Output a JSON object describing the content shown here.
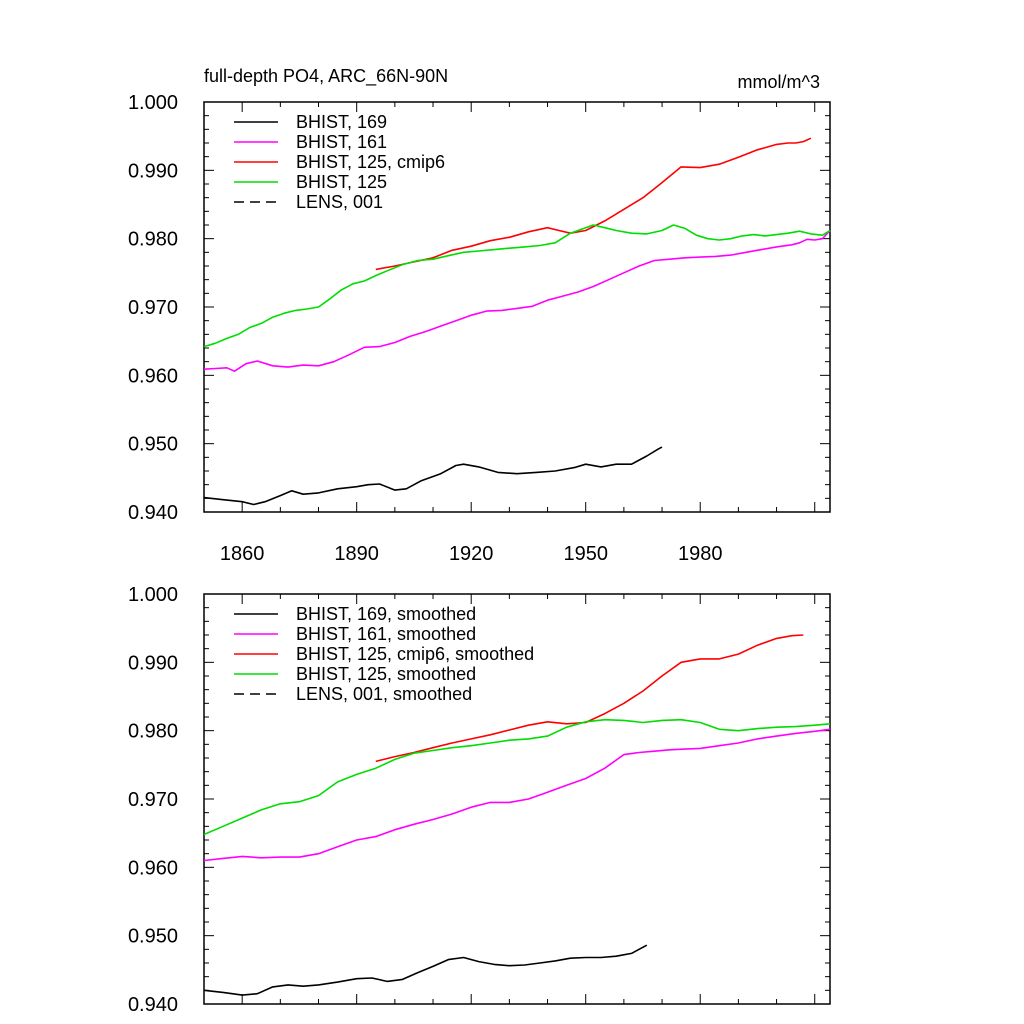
{
  "figure": {
    "title": "full-depth PO4, ARC_66N-90N",
    "units": "mmol/m^3"
  },
  "chart_data": [
    {
      "type": "line",
      "panel": "top",
      "title": "full-depth PO4, ARC_66N-90N",
      "units_label": "mmol/m^3",
      "xlim": [
        1850,
        2014
      ],
      "ylim": [
        0.94,
        1.0
      ],
      "xticks": [
        1860,
        1890,
        1920,
        1950,
        1980
      ],
      "xtick_labels": [
        "1860",
        "1890",
        "1920",
        "1950",
        "1980"
      ],
      "yticks": [
        0.94,
        0.95,
        0.96,
        0.97,
        0.98,
        0.99,
        1.0
      ],
      "ytick_labels": [
        "0.940",
        "0.950",
        "0.960",
        "0.970",
        "0.980",
        "0.990",
        "1.000"
      ],
      "legend_position": "top-left",
      "series": [
        {
          "name": "BHIST, 169",
          "color": "#000000",
          "dash": "solid",
          "x": [
            1850,
            1855,
            1860,
            1863,
            1866,
            1870,
            1873,
            1876,
            1880,
            1885,
            1890,
            1893,
            1896,
            1900,
            1903,
            1907,
            1912,
            1916,
            1918,
            1922,
            1927,
            1932,
            1937,
            1942,
            1947,
            1950,
            1954,
            1958,
            1962,
            1966,
            1969,
            1970
          ],
          "y": [
            0.9421,
            0.9418,
            0.9415,
            0.9411,
            0.9415,
            0.9424,
            0.9431,
            0.9426,
            0.9428,
            0.9434,
            0.9437,
            0.944,
            0.9441,
            0.9432,
            0.9434,
            0.9446,
            0.9456,
            0.9468,
            0.947,
            0.9466,
            0.9458,
            0.9456,
            0.9458,
            0.946,
            0.9465,
            0.947,
            0.9466,
            0.947,
            0.947,
            0.9482,
            0.9492,
            0.9495
          ]
        },
        {
          "name": "BHIST, 161",
          "color": "#ff00ff",
          "dash": "solid",
          "x": [
            1850,
            1853,
            1856,
            1858,
            1861,
            1864,
            1868,
            1872,
            1876,
            1880,
            1884,
            1888,
            1892,
            1896,
            1900,
            1904,
            1908,
            1912,
            1916,
            1920,
            1924,
            1928,
            1932,
            1936,
            1940,
            1944,
            1948,
            1952,
            1956,
            1960,
            1964,
            1968,
            1972,
            1976,
            1980,
            1984,
            1988,
            1992,
            1996,
            2000,
            2004,
            2006,
            2008,
            2010,
            2012,
            2014
          ],
          "y": [
            0.9609,
            0.961,
            0.9611,
            0.9606,
            0.9617,
            0.9621,
            0.9614,
            0.9612,
            0.9615,
            0.9614,
            0.962,
            0.963,
            0.9641,
            0.9642,
            0.9648,
            0.9657,
            0.9664,
            0.9672,
            0.968,
            0.9688,
            0.9694,
            0.9695,
            0.9698,
            0.9701,
            0.971,
            0.9716,
            0.9722,
            0.973,
            0.974,
            0.975,
            0.976,
            0.9768,
            0.977,
            0.9772,
            0.9773,
            0.9774,
            0.9776,
            0.978,
            0.9784,
            0.9788,
            0.9791,
            0.9794,
            0.9799,
            0.9798,
            0.98,
            0.9812
          ]
        },
        {
          "name": "BHIST, 125, cmip6",
          "color": "#ff0000",
          "dash": "solid",
          "x": [
            1895,
            1900,
            1905,
            1910,
            1915,
            1920,
            1925,
            1930,
            1935,
            1940,
            1943,
            1946,
            1950,
            1955,
            1960,
            1965,
            1970,
            1975,
            1980,
            1985,
            1990,
            1995,
            2000,
            2003,
            2005,
            2007,
            2009
          ],
          "y": [
            0.9755,
            0.976,
            0.9766,
            0.9772,
            0.9783,
            0.9789,
            0.9797,
            0.9802,
            0.981,
            0.9816,
            0.9812,
            0.9808,
            0.9812,
            0.9826,
            0.9843,
            0.986,
            0.9882,
            0.9905,
            0.9904,
            0.9909,
            0.9919,
            0.993,
            0.9938,
            0.994,
            0.994,
            0.9942,
            0.9947
          ]
        },
        {
          "name": "BHIST, 125",
          "color": "#00dd00",
          "dash": "solid",
          "x": [
            1850,
            1853,
            1856,
            1859,
            1862,
            1865,
            1868,
            1871,
            1874,
            1877,
            1880,
            1883,
            1886,
            1889,
            1892,
            1895,
            1898,
            1902,
            1906,
            1910,
            1914,
            1918,
            1922,
            1926,
            1930,
            1934,
            1938,
            1942,
            1946,
            1950,
            1952,
            1955,
            1958,
            1962,
            1966,
            1970,
            1973,
            1976,
            1979,
            1982,
            1985,
            1988,
            1991,
            1994,
            1997,
            2000,
            2003,
            2006,
            2009,
            2012,
            2014
          ],
          "y": [
            0.9642,
            0.9647,
            0.9654,
            0.966,
            0.967,
            0.9676,
            0.9685,
            0.9691,
            0.9695,
            0.9697,
            0.97,
            0.9712,
            0.9725,
            0.9734,
            0.9738,
            0.9746,
            0.9753,
            0.9762,
            0.9768,
            0.977,
            0.9775,
            0.978,
            0.9782,
            0.9784,
            0.9786,
            0.9788,
            0.979,
            0.9794,
            0.9808,
            0.9816,
            0.982,
            0.9816,
            0.9812,
            0.9808,
            0.9807,
            0.9812,
            0.982,
            0.9815,
            0.9805,
            0.98,
            0.9798,
            0.98,
            0.9804,
            0.9806,
            0.9804,
            0.9806,
            0.9808,
            0.9811,
            0.9807,
            0.9805,
            0.9812
          ]
        }
      ]
    },
    {
      "type": "line",
      "panel": "bottom",
      "xlim": [
        1850,
        2014
      ],
      "ylim": [
        0.94,
        1.0
      ],
      "xticks": [
        1860,
        1890,
        1920,
        1950,
        1980
      ],
      "yticks": [
        0.94,
        0.95,
        0.96,
        0.97,
        0.98,
        0.99,
        1.0
      ],
      "ytick_labels": [
        "0.940",
        "0.950",
        "0.960",
        "0.970",
        "0.980",
        "0.990",
        "1.000"
      ],
      "legend_position": "top-left",
      "series": [
        {
          "name": "BHIST, 169, smoothed",
          "color": "#000000",
          "dash": "solid",
          "x": [
            1850,
            1855,
            1860,
            1864,
            1868,
            1872,
            1876,
            1880,
            1885,
            1890,
            1894,
            1898,
            1902,
            1906,
            1910,
            1914,
            1918,
            1922,
            1926,
            1930,
            1934,
            1938,
            1942,
            1946,
            1950,
            1954,
            1958,
            1962,
            1964,
            1966
          ],
          "y": [
            0.942,
            0.9417,
            0.9413,
            0.9415,
            0.9425,
            0.9428,
            0.9426,
            0.9428,
            0.9432,
            0.9437,
            0.9438,
            0.9433,
            0.9436,
            0.9446,
            0.9455,
            0.9465,
            0.9468,
            0.9462,
            0.9458,
            0.9456,
            0.9457,
            0.946,
            0.9463,
            0.9467,
            0.9468,
            0.9468,
            0.947,
            0.9474,
            0.948,
            0.9486
          ]
        },
        {
          "name": "BHIST, 161, smoothed",
          "color": "#ff00ff",
          "dash": "solid",
          "x": [
            1850,
            1855,
            1860,
            1865,
            1870,
            1875,
            1880,
            1885,
            1890,
            1895,
            1900,
            1905,
            1910,
            1915,
            1920,
            1925,
            1930,
            1935,
            1940,
            1945,
            1950,
            1955,
            1960,
            1964,
            1968,
            1972,
            1976,
            1980,
            1985,
            1990,
            1995,
            2000,
            2005,
            2010,
            2014
          ],
          "y": [
            0.961,
            0.9613,
            0.9616,
            0.9614,
            0.9615,
            0.9615,
            0.962,
            0.963,
            0.964,
            0.9645,
            0.9655,
            0.9663,
            0.967,
            0.9678,
            0.9688,
            0.9695,
            0.9695,
            0.97,
            0.971,
            0.972,
            0.973,
            0.9745,
            0.9765,
            0.9768,
            0.977,
            0.9772,
            0.9773,
            0.9774,
            0.9778,
            0.9782,
            0.9788,
            0.9792,
            0.9796,
            0.9799,
            0.9802
          ]
        },
        {
          "name": "BHIST, 125, cmip6, smoothed",
          "color": "#ff0000",
          "dash": "solid",
          "x": [
            1895,
            1900,
            1905,
            1910,
            1915,
            1920,
            1925,
            1930,
            1935,
            1940,
            1945,
            1950,
            1955,
            1960,
            1965,
            1970,
            1975,
            1980,
            1985,
            1990,
            1995,
            2000,
            2004,
            2007
          ],
          "y": [
            0.9755,
            0.9762,
            0.9768,
            0.9775,
            0.9782,
            0.9788,
            0.9794,
            0.9801,
            0.9808,
            0.9813,
            0.981,
            0.9812,
            0.9825,
            0.984,
            0.9858,
            0.988,
            0.99,
            0.9905,
            0.9905,
            0.9912,
            0.9925,
            0.9935,
            0.9939,
            0.994
          ]
        },
        {
          "name": "BHIST, 125, smoothed",
          "color": "#00dd00",
          "dash": "solid",
          "x": [
            1850,
            1855,
            1860,
            1865,
            1870,
            1875,
            1880,
            1885,
            1890,
            1895,
            1900,
            1905,
            1910,
            1915,
            1920,
            1925,
            1930,
            1935,
            1940,
            1945,
            1950,
            1955,
            1960,
            1965,
            1970,
            1975,
            1980,
            1985,
            1990,
            1995,
            2000,
            2005,
            2010,
            2014
          ],
          "y": [
            0.9648,
            0.966,
            0.9672,
            0.9684,
            0.9693,
            0.9696,
            0.9705,
            0.9725,
            0.9736,
            0.9745,
            0.9758,
            0.9767,
            0.9771,
            0.9775,
            0.9778,
            0.9782,
            0.9786,
            0.9788,
            0.9792,
            0.9805,
            0.9813,
            0.9816,
            0.9815,
            0.9812,
            0.9815,
            0.9816,
            0.9812,
            0.9802,
            0.98,
            0.9803,
            0.9805,
            0.9806,
            0.9808,
            0.981
          ]
        }
      ]
    }
  ],
  "legends": {
    "top": [
      "BHIST, 169",
      "BHIST, 161",
      "BHIST, 125, cmip6",
      "BHIST, 125",
      "LENS, 001"
    ],
    "bottom": [
      "BHIST, 169, smoothed",
      "BHIST, 161, smoothed",
      "BHIST, 125, cmip6, smoothed",
      "BHIST, 125, smoothed",
      "LENS, 001, smoothed"
    ],
    "colors": [
      "#000000",
      "#ff00ff",
      "#ff0000",
      "#00dd00",
      "#000000"
    ],
    "dashes": [
      "solid",
      "solid",
      "solid",
      "solid",
      "dashed"
    ]
  }
}
